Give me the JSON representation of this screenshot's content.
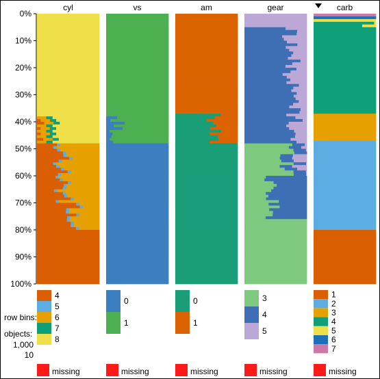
{
  "chart_data": {
    "type": "tableplot",
    "y_axis": {
      "ticks": [
        "0%",
        "10%",
        "20%",
        "30%",
        "40%",
        "50%",
        "60%",
        "70%",
        "80%",
        "90%",
        "100%"
      ]
    },
    "sort_indicator": "descending",
    "sort_column": "carb",
    "legend_info": {
      "row_bins_label": "row bins:",
      "row_bins_value": "",
      "objects_label": "objects:",
      "objects_value": "1,000",
      "objects_per_bin": "10"
    },
    "missing_label": "missing",
    "missing_color": "#FF1A1A",
    "columns": [
      {
        "name": "cyl",
        "categories": [
          {
            "label": "4",
            "color": "#D95F02"
          },
          {
            "label": "5",
            "color": "#5DADE2"
          },
          {
            "label": "6",
            "color": "#E6A000"
          },
          {
            "label": "7",
            "color": "#0F9F78"
          },
          {
            "label": "8",
            "color": "#EFE04A"
          }
        ],
        "bins": [
          {
            "from": 0,
            "to": 38,
            "fractions": [
              0,
              0,
              0,
              0,
              1
            ]
          },
          {
            "from": 38,
            "to": 48,
            "fractions": [
              0.05,
              0,
              0.15,
              0.1,
              0.7
            ]
          },
          {
            "from": 48,
            "to": 70,
            "fractions": [
              0.4,
              0.05,
              0.55,
              0,
              0
            ]
          },
          {
            "from": 70,
            "to": 80,
            "fractions": [
              0.55,
              0.05,
              0.4,
              0,
              0
            ]
          },
          {
            "from": 80,
            "to": 100,
            "fractions": [
              1,
              0,
              0,
              0,
              0
            ]
          }
        ]
      },
      {
        "name": "vs",
        "categories": [
          {
            "label": "0",
            "color": "#3C7FC0"
          },
          {
            "label": "1",
            "color": "#4CAF50"
          }
        ],
        "bins": [
          {
            "from": 0,
            "to": 38,
            "fractions": [
              0,
              1
            ]
          },
          {
            "from": 38,
            "to": 48,
            "fractions": [
              0.15,
              0.85
            ]
          },
          {
            "from": 48,
            "to": 100,
            "fractions": [
              1,
              0
            ]
          }
        ]
      },
      {
        "name": "am",
        "categories": [
          {
            "label": "0",
            "color": "#199E78"
          },
          {
            "label": "1",
            "color": "#DB6300"
          }
        ],
        "bins": [
          {
            "from": 0,
            "to": 37,
            "fractions": [
              0,
              1
            ]
          },
          {
            "from": 37,
            "to": 48,
            "fractions": [
              0.6,
              0.4
            ]
          },
          {
            "from": 48,
            "to": 100,
            "fractions": [
              1,
              0
            ]
          }
        ]
      },
      {
        "name": "gear",
        "categories": [
          {
            "label": "3",
            "color": "#7FC97F"
          },
          {
            "label": "4",
            "color": "#3E6EB4"
          },
          {
            "label": "5",
            "color": "#BCA8D6"
          }
        ],
        "bins": [
          {
            "from": 0,
            "to": 5,
            "fractions": [
              0,
              0,
              1
            ]
          },
          {
            "from": 5,
            "to": 30,
            "fractions": [
              0,
              0.75,
              0.25
            ]
          },
          {
            "from": 30,
            "to": 48,
            "fractions": [
              0,
              0.8,
              0.2
            ]
          },
          {
            "from": 48,
            "to": 60,
            "fractions": [
              0.7,
              0.2,
              0.1
            ]
          },
          {
            "from": 60,
            "to": 76,
            "fractions": [
              0.45,
              0.55,
              0
            ]
          },
          {
            "from": 76,
            "to": 100,
            "fractions": [
              1,
              0,
              0
            ]
          }
        ]
      },
      {
        "name": "carb",
        "categories": [
          {
            "label": "1",
            "color": "#D95F02"
          },
          {
            "label": "2",
            "color": "#5DADE2"
          },
          {
            "label": "3",
            "color": "#E6A000"
          },
          {
            "label": "4",
            "color": "#0FA078"
          },
          {
            "label": "5",
            "color": "#EFE04A"
          },
          {
            "label": "6",
            "color": "#1F6FB8"
          },
          {
            "label": "7",
            "color": "#CC79A7"
          }
        ],
        "bins": [
          {
            "from": 0,
            "to": 1,
            "fractions": [
              0,
              0,
              0,
              0,
              0,
              0,
              1
            ]
          },
          {
            "from": 1,
            "to": 2,
            "fractions": [
              0,
              0,
              0,
              0,
              0,
              1,
              0
            ]
          },
          {
            "from": 2,
            "to": 3,
            "fractions": [
              0,
              0,
              0,
              0,
              1,
              0,
              0
            ]
          },
          {
            "from": 3,
            "to": 5,
            "fractions": [
              0,
              0,
              0,
              0.85,
              0.15,
              0,
              0
            ]
          },
          {
            "from": 5,
            "to": 37,
            "fractions": [
              0,
              0,
              0,
              1,
              0,
              0,
              0
            ]
          },
          {
            "from": 37,
            "to": 47,
            "fractions": [
              0,
              0,
              1,
              0,
              0,
              0,
              0
            ]
          },
          {
            "from": 47,
            "to": 80,
            "fractions": [
              0,
              1,
              0,
              0,
              0,
              0,
              0
            ]
          },
          {
            "from": 80,
            "to": 100,
            "fractions": [
              1,
              0,
              0,
              0,
              0,
              0,
              0
            ]
          }
        ]
      }
    ]
  }
}
